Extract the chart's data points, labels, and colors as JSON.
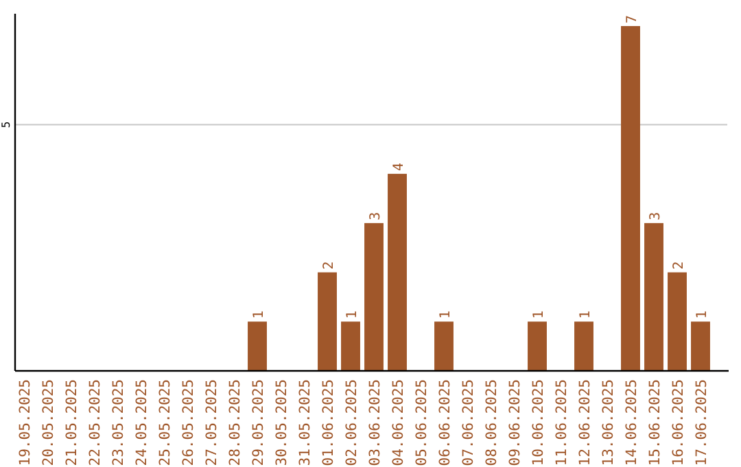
{
  "chart_data": {
    "type": "bar",
    "categories": [
      "19.05.2025",
      "20.05.2025",
      "21.05.2025",
      "22.05.2025",
      "23.05.2025",
      "24.05.2025",
      "25.05.2025",
      "26.05.2025",
      "27.05.2025",
      "28.05.2025",
      "29.05.2025",
      "30.05.2025",
      "31.05.2025",
      "01.06.2025",
      "02.06.2025",
      "03.06.2025",
      "04.06.2025",
      "05.06.2025",
      "06.06.2025",
      "07.06.2025",
      "08.06.2025",
      "09.06.2025",
      "10.06.2025",
      "11.06.2025",
      "12.06.2025",
      "13.06.2025",
      "14.06.2025",
      "15.06.2025",
      "16.06.2025",
      "17.06.2025"
    ],
    "values": [
      0,
      0,
      0,
      0,
      0,
      0,
      0,
      0,
      0,
      0,
      1,
      0,
      0,
      2,
      1,
      3,
      4,
      0,
      1,
      0,
      0,
      0,
      1,
      0,
      1,
      0,
      7,
      3,
      2,
      1
    ],
    "value_labels": [
      null,
      null,
      null,
      null,
      null,
      null,
      null,
      null,
      null,
      null,
      "1",
      null,
      null,
      "2",
      "1",
      "3",
      "4",
      null,
      "1",
      null,
      null,
      null,
      "1",
      null,
      "1",
      null,
      "7",
      "3",
      "2",
      "1"
    ],
    "color": "#a0572a",
    "ylim": [
      0,
      7.25
    ],
    "yticks": [
      5
    ],
    "grid": "y"
  }
}
